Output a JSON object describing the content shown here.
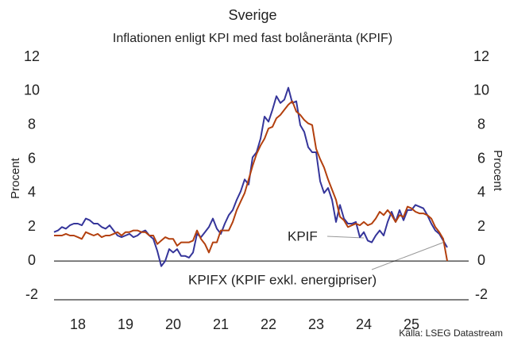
{
  "chart_data": {
    "type": "line",
    "title": "Sverige",
    "subtitle": "Inflationen enligt KPI med fast bolåneränta (KPIF)",
    "ylabel": "Procent",
    "y2label": "Procent",
    "source": "Källa: LSEG Datastream",
    "xlim": [
      2018,
      2026.7
    ],
    "xticks": [
      {
        "value": 2018.5,
        "label": "18"
      },
      {
        "value": 2019.5,
        "label": "19"
      },
      {
        "value": 2020.5,
        "label": "20"
      },
      {
        "value": 2021.5,
        "label": "21"
      },
      {
        "value": 2022.5,
        "label": "22"
      },
      {
        "value": 2023.5,
        "label": "23"
      },
      {
        "value": 2024.5,
        "label": "24"
      },
      {
        "value": 2025.5,
        "label": "25"
      }
    ],
    "ylim": [
      -2,
      12
    ],
    "yticks": [
      -2,
      0,
      2,
      4,
      6,
      8,
      10,
      12
    ],
    "y2lim": [
      -2,
      12
    ],
    "y2ticks": [
      -2,
      0,
      2,
      4,
      6,
      8,
      10,
      12
    ],
    "x": [
      2018,
      2018.083,
      2018.167,
      2018.25,
      2018.333,
      2018.417,
      2018.5,
      2018.583,
      2018.667,
      2018.75,
      2018.833,
      2018.917,
      2019,
      2019.083,
      2019.167,
      2019.25,
      2019.333,
      2019.417,
      2019.5,
      2019.583,
      2019.667,
      2019.75,
      2019.833,
      2019.917,
      2020,
      2020.083,
      2020.167,
      2020.25,
      2020.333,
      2020.417,
      2020.5,
      2020.583,
      2020.667,
      2020.75,
      2020.833,
      2020.917,
      2021,
      2021.083,
      2021.167,
      2021.25,
      2021.333,
      2021.417,
      2021.5,
      2021.583,
      2021.667,
      2021.75,
      2021.833,
      2021.917,
      2022,
      2022.083,
      2022.167,
      2022.25,
      2022.333,
      2022.417,
      2022.5,
      2022.583,
      2022.667,
      2022.75,
      2022.833,
      2022.917,
      2023,
      2023.083,
      2023.167,
      2023.25,
      2023.333,
      2023.417,
      2023.5,
      2023.583,
      2023.667,
      2023.75,
      2023.833,
      2023.917,
      2024,
      2024.083,
      2024.167,
      2024.25,
      2024.333,
      2024.417,
      2024.5,
      2024.583,
      2024.667,
      2024.75,
      2024.833,
      2024.917,
      2025,
      2025.083,
      2025.167,
      2025.25,
      2025.333,
      2025.417,
      2025.5,
      2025.583,
      2025.667,
      2025.75,
      2025.833,
      2025.917,
      2026,
      2026.083,
      2026.167,
      2026.25
    ],
    "series": [
      {
        "name": "KPIF",
        "color": "#35359a",
        "values": [
          1.7,
          1.8,
          2.0,
          1.9,
          2.1,
          2.2,
          2.2,
          2.1,
          2.5,
          2.4,
          2.2,
          2.2,
          2.0,
          1.9,
          2.1,
          1.8,
          1.5,
          1.4,
          1.5,
          1.6,
          1.4,
          1.5,
          1.7,
          1.8,
          1.5,
          1.3,
          0.6,
          -0.3,
          0.0,
          0.7,
          0.5,
          0.7,
          0.3,
          0.3,
          0.2,
          0.5,
          1.6,
          1.4,
          1.7,
          2.0,
          2.5,
          1.9,
          1.6,
          2.2,
          2.7,
          3.0,
          3.6,
          4.1,
          4.8,
          4.5,
          6.1,
          6.4,
          7.2,
          8.5,
          8.2,
          8.9,
          9.7,
          9.3,
          9.5,
          10.2,
          9.3,
          9.4,
          8.0,
          7.6,
          6.7,
          6.4,
          6.4,
          4.7,
          4.0,
          4.3,
          3.6,
          2.3,
          3.3,
          2.5,
          2.2,
          2.2,
          2.3,
          1.4,
          1.7,
          1.2,
          1.1,
          1.5,
          1.8,
          1.5,
          2.3,
          2.9,
          2.3,
          3.0,
          2.4,
          3.0,
          3.0,
          3.3,
          3.2,
          3.1,
          2.7,
          2.2,
          1.8,
          1.6,
          1.2,
          0.8
        ]
      },
      {
        "name": "KPIFX (KPIF exkl. energipriser)",
        "color": "#b3400e",
        "values": [
          1.5,
          1.5,
          1.5,
          1.6,
          1.5,
          1.5,
          1.4,
          1.3,
          1.7,
          1.6,
          1.5,
          1.6,
          1.4,
          1.5,
          1.5,
          1.6,
          1.7,
          1.5,
          1.7,
          1.7,
          1.8,
          1.8,
          1.7,
          1.7,
          1.5,
          1.5,
          1.0,
          1.2,
          1.4,
          1.3,
          1.3,
          0.9,
          1.1,
          1.1,
          1.1,
          1.2,
          1.8,
          1.3,
          1.0,
          0.5,
          1.1,
          1.1,
          1.8,
          1.8,
          1.8,
          2.3,
          3.0,
          3.5,
          4.0,
          4.8,
          5.6,
          6.3,
          6.8,
          7.2,
          7.8,
          7.9,
          8.4,
          8.6,
          8.9,
          9.2,
          9.4,
          8.8,
          8.6,
          8.3,
          8.1,
          8.0,
          6.6,
          6.0,
          5.5,
          4.8,
          4.2,
          3.6,
          2.6,
          2.4,
          2.0,
          2.1,
          2.2,
          2.1,
          2.3,
          2.1,
          2.2,
          2.5,
          2.9,
          2.7,
          3.0,
          2.7,
          2.3,
          2.7,
          2.6,
          3.2,
          3.1,
          2.9,
          2.8,
          2.8,
          2.7,
          2.5,
          2.0,
          1.7,
          1.3,
          0.0
        ]
      }
    ]
  }
}
